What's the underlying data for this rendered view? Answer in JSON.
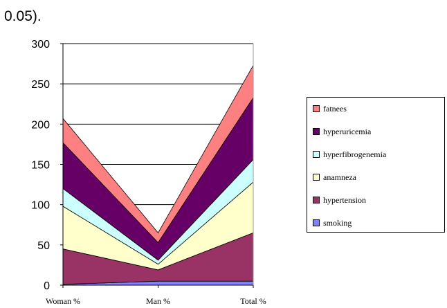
{
  "caption": "0.05).",
  "chart_data": {
    "type": "area",
    "stacked": true,
    "categories": [
      "Woman %",
      "Man %",
      "Total %"
    ],
    "ylim": [
      0,
      300
    ],
    "yticks": [
      0,
      50,
      100,
      150,
      200,
      250,
      300
    ],
    "grid": true,
    "legend_position": "right",
    "series": [
      {
        "name": "smoking",
        "values": [
          1,
          5,
          5
        ],
        "color": "#8080ff"
      },
      {
        "name": "hypertension",
        "values": [
          44,
          14,
          60
        ],
        "color": "#993366"
      },
      {
        "name": "anamneza",
        "values": [
          53,
          7,
          63
        ],
        "color": "#ffffcc"
      },
      {
        "name": "hyperfibrogenemia",
        "values": [
          22,
          5,
          28
        ],
        "color": "#ccffff"
      },
      {
        "name": "hyperuricemia",
        "values": [
          57,
          22,
          77
        ],
        "color": "#660066"
      },
      {
        "name": "fatnees",
        "values": [
          30,
          12,
          40
        ],
        "color": "#ff8080"
      }
    ]
  }
}
